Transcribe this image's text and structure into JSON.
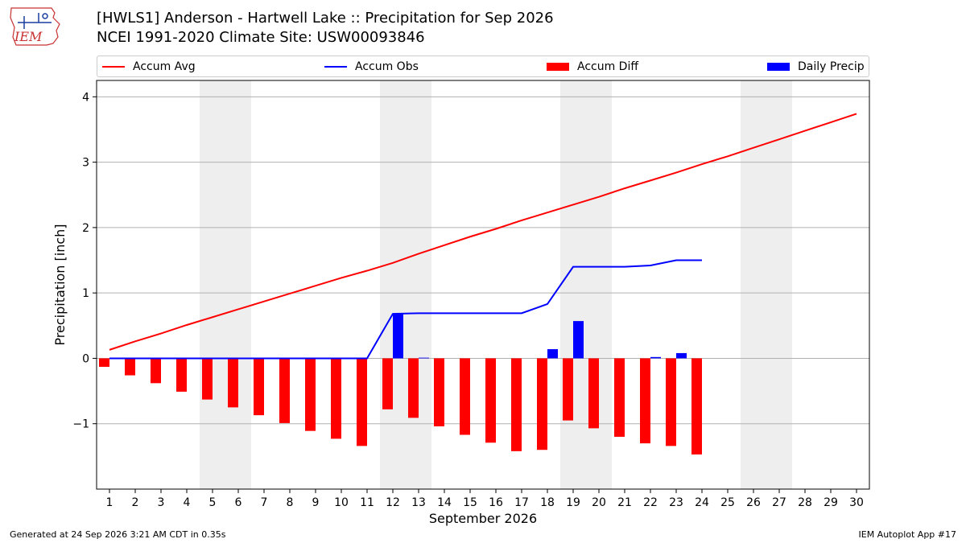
{
  "header": {
    "logo_text": "IEM",
    "title_line1": "[HWLS1] Anderson - Hartwell Lake :: Precipitation for Sep 2026",
    "title_line2": "NCEI 1991-2020 Climate Site: USW00093846"
  },
  "footer": {
    "generated": "Generated at 24 Sep 2026 3:21 AM CDT in 0.35s",
    "app": "IEM Autoplot App #17"
  },
  "colors": {
    "accum_avg": "#ff0000",
    "accum_obs": "#0000ff",
    "accum_diff": "#ff0000",
    "daily_precip": "#0000ff",
    "weekend_shade": "#eeeeee",
    "grid": "#b0b0b0"
  },
  "chart_data": {
    "type": "bar",
    "xlabel": "September 2026",
    "ylabel": "Precipitation [inch]",
    "ylim": [
      -2.0,
      4.25
    ],
    "xlim": [
      0.5,
      30.5
    ],
    "yticks": [
      -1,
      0,
      1,
      2,
      3,
      4
    ],
    "ytick_labels": [
      "−1",
      "0",
      "1",
      "2",
      "3",
      "4"
    ],
    "days": [
      1,
      2,
      3,
      4,
      5,
      6,
      7,
      8,
      9,
      10,
      11,
      12,
      13,
      14,
      15,
      16,
      17,
      18,
      19,
      20,
      21,
      22,
      23,
      24,
      25,
      26,
      27,
      28,
      29,
      30
    ],
    "weekend_spans": [
      [
        4.5,
        6.5
      ],
      [
        11.5,
        13.5
      ],
      [
        18.5,
        20.5
      ],
      [
        25.5,
        27.5
      ]
    ],
    "grid": "horizontal",
    "legend": {
      "placement": "top",
      "entries": [
        "Accum Avg",
        "Accum Obs",
        "Accum Diff",
        "Daily Precip"
      ]
    },
    "series": [
      {
        "name": "Accum Avg",
        "type": "line",
        "x": [
          1,
          2,
          3,
          4,
          5,
          6,
          7,
          8,
          9,
          10,
          11,
          12,
          13,
          14,
          15,
          16,
          17,
          18,
          19,
          20,
          21,
          22,
          23,
          24,
          25,
          26,
          27,
          28,
          29,
          30
        ],
        "values": [
          0.13,
          0.26,
          0.38,
          0.51,
          0.63,
          0.75,
          0.87,
          0.99,
          1.11,
          1.23,
          1.34,
          1.46,
          1.6,
          1.73,
          1.86,
          1.98,
          2.11,
          2.23,
          2.35,
          2.47,
          2.6,
          2.72,
          2.84,
          2.97,
          3.09,
          3.22,
          3.35,
          3.48,
          3.61,
          3.74
        ]
      },
      {
        "name": "Accum Obs",
        "type": "line",
        "x": [
          1,
          2,
          3,
          4,
          5,
          6,
          7,
          8,
          9,
          10,
          11,
          12,
          13,
          14,
          15,
          16,
          17,
          18,
          19,
          20,
          21,
          22,
          23,
          24
        ],
        "values": [
          0.0,
          0.0,
          0.0,
          0.0,
          0.0,
          0.0,
          0.0,
          0.0,
          0.0,
          0.0,
          0.0,
          0.68,
          0.69,
          0.69,
          0.69,
          0.69,
          0.69,
          0.83,
          1.4,
          1.4,
          1.4,
          1.42,
          1.5,
          1.5
        ]
      },
      {
        "name": "Accum Diff",
        "type": "bar",
        "x": [
          1,
          2,
          3,
          4,
          5,
          6,
          7,
          8,
          9,
          10,
          11,
          12,
          13,
          14,
          15,
          16,
          17,
          18,
          19,
          20,
          21,
          22,
          23,
          24
        ],
        "values": [
          -0.13,
          -0.26,
          -0.38,
          -0.51,
          -0.63,
          -0.75,
          -0.87,
          -0.99,
          -1.11,
          -1.23,
          -1.34,
          -0.78,
          -0.91,
          -1.04,
          -1.17,
          -1.29,
          -1.42,
          -1.4,
          -0.95,
          -1.07,
          -1.2,
          -1.3,
          -1.34,
          -1.47
        ]
      },
      {
        "name": "Daily Precip",
        "type": "bar",
        "x": [
          1,
          2,
          3,
          4,
          5,
          6,
          7,
          8,
          9,
          10,
          11,
          12,
          13,
          14,
          15,
          16,
          17,
          18,
          19,
          20,
          21,
          22,
          23,
          24
        ],
        "values": [
          0,
          0,
          0,
          0,
          0,
          0,
          0,
          0,
          0,
          0,
          0,
          0.68,
          0.01,
          0,
          0,
          0,
          0,
          0.14,
          0.57,
          0,
          0,
          0.02,
          0.08,
          0
        ]
      }
    ]
  }
}
